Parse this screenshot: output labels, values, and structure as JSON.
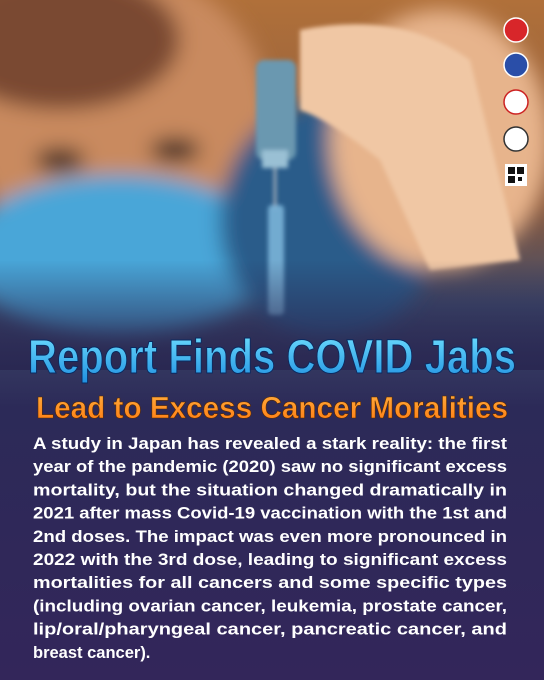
{
  "headline": {
    "title": "Report Finds COVID Jabs",
    "subtitle": "Lead to Excess Cancer Moralities"
  },
  "body": {
    "lines": [
      "A study in Japan has revealed a stark reality: the first",
      "year of the pandemic (2020) saw no significant excess",
      "mortality, but the situation changed dramatically in",
      "2021 after mass Covid-19 vaccination with the 1st and",
      "2nd doses. The impact was even more pronounced in",
      "2022 with the 3rd dose, leading to significant excess",
      "mortalities for all cancers and some specific types",
      "(including ovarian cancer, leukemia, prostate cancer,",
      "lip/oral/pharyngeal cancer, pancreatic cancer, and",
      "breast cancer)."
    ]
  }
}
